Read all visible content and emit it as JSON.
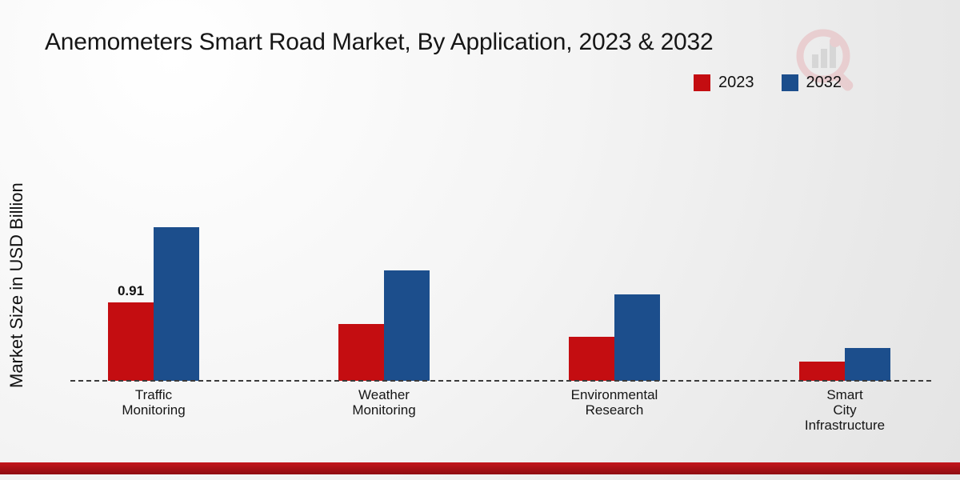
{
  "title": "Anemometers Smart Road Market, By Application, 2023 & 2032",
  "ylabel": "Market Size in USD Billion",
  "legend": [
    {
      "label": "2023",
      "color": "#c40d11"
    },
    {
      "label": "2032",
      "color": "#1c4e8c"
    }
  ],
  "colors": {
    "series_2023": "#c40d11",
    "series_2032": "#1c4e8c",
    "axis_line": "#3c3c3c",
    "footer_bar": "#a31015"
  },
  "chart_data": {
    "type": "bar",
    "title": "Anemometers Smart Road Market, By Application, 2023 & 2032",
    "xlabel": "",
    "ylabel": "Market Size in USD Billion",
    "ylim": [
      0,
      2
    ],
    "grid": false,
    "legend_position": "top-right",
    "categories": [
      "Traffic Monitoring",
      "Weather Monitoring",
      "Environmental Research",
      "Smart City Infrastructure"
    ],
    "category_label_lines": [
      [
        "Traffic",
        "Monitoring"
      ],
      [
        "Weather",
        "Monitoring"
      ],
      [
        "Environmental",
        "Research"
      ],
      [
        "Smart",
        "City",
        "Infrastructure"
      ]
    ],
    "series": [
      {
        "name": "2023",
        "color": "#c40d11",
        "values": [
          0.91,
          0.66,
          0.51,
          0.22
        ]
      },
      {
        "name": "2032",
        "color": "#1c4e8c",
        "values": [
          1.78,
          1.28,
          1.0,
          0.38
        ]
      }
    ],
    "annotations": [
      {
        "series_index": 0,
        "category_index": 0,
        "text": "0.91"
      }
    ]
  }
}
